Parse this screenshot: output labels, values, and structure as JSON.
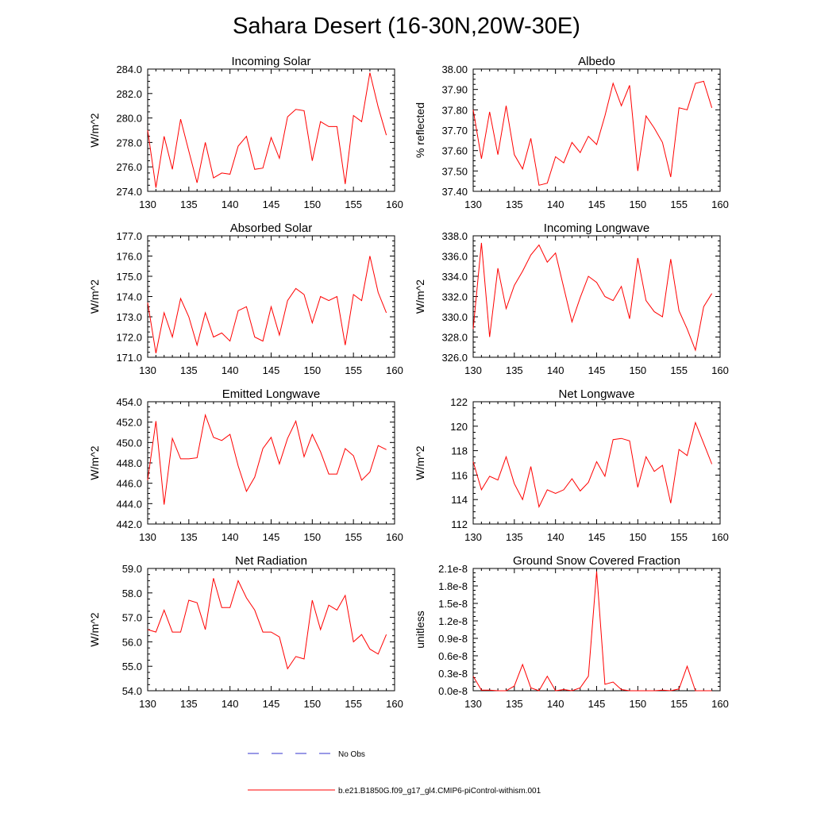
{
  "title": "Sahara Desert (16-30N,20W-30E)",
  "colors": {
    "model": "#ff0000",
    "obs": "#3333cc"
  },
  "legend": [
    {
      "label": "No Obs",
      "style": "dashed",
      "color": "#3333cc"
    },
    {
      "label": "b.e21.B1850G.f09_g17_gl4.CMIP6-piControl-withism.001",
      "style": "solid",
      "color": "#ff0000"
    }
  ],
  "chart_data": [
    {
      "type": "line",
      "title": "Incoming Solar",
      "ylabel": "W/m^2",
      "xlim": [
        130,
        160
      ],
      "ylim": [
        274,
        284
      ],
      "xticks": [
        130,
        135,
        140,
        145,
        150,
        155,
        160
      ],
      "yticks": [
        "274.0",
        "276.0",
        "278.0",
        "280.0",
        "282.0",
        "284.0"
      ],
      "x": [
        130,
        131,
        132,
        133,
        134,
        135,
        136,
        137,
        138,
        139,
        140,
        141,
        142,
        143,
        144,
        145,
        146,
        147,
        148,
        149,
        150,
        151,
        152,
        153,
        154,
        155,
        156,
        157,
        158,
        159
      ],
      "series": [
        {
          "values": [
            279.0,
            274.3,
            278.5,
            275.8,
            279.9,
            277.3,
            274.7,
            278.0,
            275.1,
            275.5,
            275.4,
            277.7,
            278.5,
            275.8,
            275.9,
            278.4,
            276.7,
            280.1,
            280.7,
            280.6,
            276.5,
            279.7,
            279.3,
            279.3,
            274.6,
            280.2,
            279.7,
            283.7,
            280.9,
            278.6
          ]
        }
      ]
    },
    {
      "type": "line",
      "title": "Albedo",
      "ylabel": "% reflected",
      "xlim": [
        130,
        160
      ],
      "ylim": [
        37.4,
        38.0
      ],
      "xticks": [
        130,
        135,
        140,
        145,
        150,
        155,
        160
      ],
      "yticks": [
        "37.40",
        "37.50",
        "37.60",
        "37.70",
        "37.80",
        "37.90",
        "38.00"
      ],
      "x": [
        130,
        131,
        132,
        133,
        134,
        135,
        136,
        137,
        138,
        139,
        140,
        141,
        142,
        143,
        144,
        145,
        146,
        147,
        148,
        149,
        150,
        151,
        152,
        153,
        154,
        155,
        156,
        157,
        158,
        159
      ],
      "series": [
        {
          "values": [
            37.8,
            37.56,
            37.79,
            37.58,
            37.82,
            37.58,
            37.51,
            37.66,
            37.43,
            37.44,
            37.57,
            37.54,
            37.64,
            37.59,
            37.67,
            37.63,
            37.77,
            37.93,
            37.82,
            37.92,
            37.5,
            37.77,
            37.71,
            37.64,
            37.47,
            37.81,
            37.8,
            37.93,
            37.94,
            37.81
          ]
        }
      ]
    },
    {
      "type": "line",
      "title": "Absorbed Solar",
      "ylabel": "W/m^2",
      "xlim": [
        130,
        160
      ],
      "ylim": [
        171,
        177
      ],
      "xticks": [
        130,
        135,
        140,
        145,
        150,
        155,
        160
      ],
      "yticks": [
        "171.0",
        "172.0",
        "173.0",
        "174.0",
        "175.0",
        "176.0",
        "177.0"
      ],
      "x": [
        130,
        131,
        132,
        133,
        134,
        135,
        136,
        137,
        138,
        139,
        140,
        141,
        142,
        143,
        144,
        145,
        146,
        147,
        148,
        149,
        150,
        151,
        152,
        153,
        154,
        155,
        156,
        157,
        158,
        159
      ],
      "series": [
        {
          "values": [
            173.7,
            171.2,
            173.2,
            172.0,
            173.9,
            173.0,
            171.6,
            173.2,
            172.0,
            172.2,
            171.8,
            173.3,
            173.5,
            172.0,
            171.8,
            173.5,
            172.1,
            173.8,
            174.4,
            174.1,
            172.7,
            174.0,
            173.8,
            174.0,
            171.6,
            174.1,
            173.8,
            176.0,
            174.2,
            173.2
          ]
        }
      ]
    },
    {
      "type": "line",
      "title": "Incoming Longwave",
      "ylabel": "W/m^2",
      "xlim": [
        130,
        160
      ],
      "ylim": [
        326,
        338
      ],
      "xticks": [
        130,
        135,
        140,
        145,
        150,
        155,
        160
      ],
      "yticks": [
        "326.0",
        "328.0",
        "330.0",
        "332.0",
        "334.0",
        "336.0",
        "338.0"
      ],
      "x": [
        130,
        131,
        132,
        133,
        134,
        135,
        136,
        137,
        138,
        139,
        140,
        141,
        142,
        143,
        144,
        145,
        146,
        147,
        148,
        149,
        150,
        151,
        152,
        153,
        154,
        155,
        156,
        157,
        158,
        159
      ],
      "series": [
        {
          "values": [
            328.8,
            337.3,
            328.0,
            334.8,
            330.8,
            333.1,
            334.5,
            336.1,
            337.1,
            335.4,
            336.3,
            332.9,
            329.5,
            331.9,
            334.0,
            333.4,
            332.0,
            331.6,
            333.0,
            329.8,
            335.8,
            331.6,
            330.5,
            330.0,
            335.7,
            330.6,
            328.8,
            326.7,
            331.0,
            332.3
          ]
        }
      ]
    },
    {
      "type": "line",
      "title": "Emitted Longwave",
      "ylabel": "W/m^2",
      "xlim": [
        130,
        160
      ],
      "ylim": [
        442,
        454
      ],
      "xticks": [
        130,
        135,
        140,
        145,
        150,
        155,
        160
      ],
      "yticks": [
        "442.0",
        "444.0",
        "446.0",
        "448.0",
        "450.0",
        "452.0",
        "454.0"
      ],
      "x": [
        130,
        131,
        132,
        133,
        134,
        135,
        136,
        137,
        138,
        139,
        140,
        141,
        142,
        143,
        144,
        145,
        146,
        147,
        148,
        149,
        150,
        151,
        152,
        153,
        154,
        155,
        156,
        157,
        158,
        159
      ],
      "series": [
        {
          "values": [
            446.3,
            452.1,
            443.9,
            450.4,
            448.4,
            448.4,
            448.5,
            452.7,
            450.5,
            450.2,
            450.8,
            447.7,
            445.2,
            446.6,
            449.4,
            450.5,
            447.9,
            450.4,
            452.1,
            448.6,
            450.8,
            449.1,
            446.9,
            446.9,
            449.4,
            448.7,
            446.3,
            447.1,
            449.7,
            449.3
          ]
        }
      ]
    },
    {
      "type": "line",
      "title": "Net Longwave",
      "ylabel": "W/m^2",
      "xlim": [
        130,
        160
      ],
      "ylim": [
        112,
        122
      ],
      "xticks": [
        130,
        135,
        140,
        145,
        150,
        155,
        160
      ],
      "yticks": [
        "112",
        "114",
        "116",
        "118",
        "120",
        "122"
      ],
      "x": [
        130,
        131,
        132,
        133,
        134,
        135,
        136,
        137,
        138,
        139,
        140,
        141,
        142,
        143,
        144,
        145,
        146,
        147,
        148,
        149,
        150,
        151,
        152,
        153,
        154,
        155,
        156,
        157,
        158,
        159
      ],
      "series": [
        {
          "values": [
            117.1,
            114.8,
            115.9,
            115.6,
            117.5,
            115.3,
            114.0,
            116.7,
            113.4,
            114.8,
            114.5,
            114.8,
            115.7,
            114.7,
            115.4,
            117.1,
            115.9,
            118.9,
            119.0,
            118.8,
            115.0,
            117.5,
            116.3,
            116.8,
            113.7,
            118.1,
            117.6,
            120.3,
            118.6,
            116.9
          ]
        }
      ]
    },
    {
      "type": "line",
      "title": "Net Radiation",
      "ylabel": "W/m^2",
      "xlim": [
        130,
        160
      ],
      "ylim": [
        54,
        59
      ],
      "xticks": [
        130,
        135,
        140,
        145,
        150,
        155,
        160
      ],
      "yticks": [
        "54.0",
        "55.0",
        "56.0",
        "57.0",
        "58.0",
        "59.0"
      ],
      "x": [
        130,
        131,
        132,
        133,
        134,
        135,
        136,
        137,
        138,
        139,
        140,
        141,
        142,
        143,
        144,
        145,
        146,
        147,
        148,
        149,
        150,
        151,
        152,
        153,
        154,
        155,
        156,
        157,
        158,
        159
      ],
      "series": [
        {
          "values": [
            56.5,
            56.4,
            57.3,
            56.4,
            56.4,
            57.7,
            57.6,
            56.5,
            58.6,
            57.4,
            57.4,
            58.5,
            57.8,
            57.3,
            56.4,
            56.4,
            56.2,
            54.9,
            55.4,
            55.3,
            57.7,
            56.5,
            57.5,
            57.3,
            57.9,
            56.0,
            56.3,
            55.7,
            55.5,
            56.3
          ]
        }
      ]
    },
    {
      "type": "line",
      "title": "Ground Snow Covered Fraction",
      "ylabel": "unitless",
      "xlim": [
        130,
        160
      ],
      "ylim": [
        0,
        2.1e-08
      ],
      "xticks": [
        130,
        135,
        140,
        145,
        150,
        155,
        160
      ],
      "yticks": [
        "0.0e-8",
        "0.3e-8",
        "0.6e-8",
        "0.9e-8",
        "1.2e-8",
        "1.5e-8",
        "1.8e-8",
        "2.1e-8"
      ],
      "x": [
        130,
        131,
        132,
        133,
        134,
        135,
        136,
        137,
        138,
        139,
        140,
        141,
        142,
        143,
        144,
        145,
        146,
        147,
        148,
        149,
        150,
        151,
        152,
        153,
        154,
        155,
        156,
        157,
        158,
        159
      ],
      "series": [
        {
          "values": [
            2.5e-09,
            1e-10,
            1e-10,
            0,
            0,
            8e-10,
            4.5e-09,
            5e-10,
            0,
            2.5e-09,
            0,
            2e-10,
            0,
            5e-10,
            2.5e-09,
            2.05e-08,
            1.1e-09,
            1.5e-09,
            2e-10,
            0,
            0,
            0,
            0,
            1e-10,
            0,
            3e-10,
            4.2e-09,
            0,
            0,
            0
          ]
        }
      ]
    }
  ]
}
